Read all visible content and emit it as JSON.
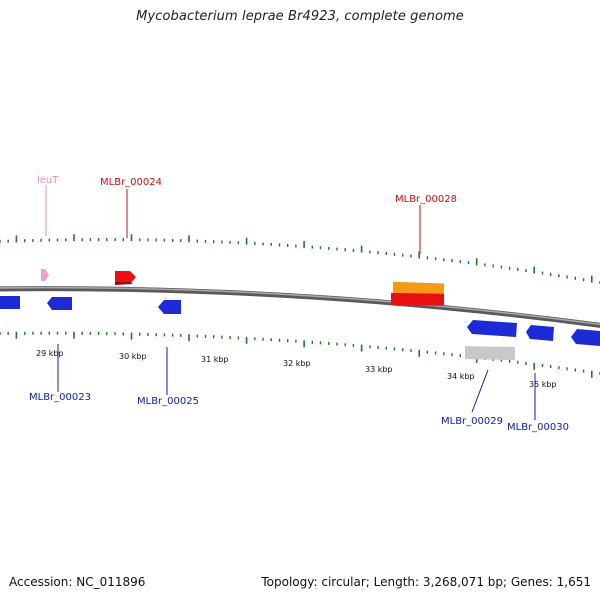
{
  "title": "Mycobacterium leprae Br4923, complete genome",
  "accession": "Accession: NC_011896",
  "summary": "Topology: circular; Length: 3,268,071 bp; Genes: 1,651",
  "colors": {
    "backbone": "#808080",
    "tick": "#1e7a1e",
    "forward_gene": "#e81010",
    "reverse_gene": "#1c2bd6",
    "trna": "#f0a0c8",
    "orange_feature": "#f59a16",
    "gray_feature": "#c8c8c8",
    "label_red": "#cc1111",
    "label_blue": "#1122aa",
    "label_pink": "#e58fbf"
  },
  "tick_labels": [
    "29 kbp",
    "30 kbp",
    "31 kbp",
    "32 kbp",
    "33 kbp",
    "34 kbp",
    "35 kbp"
  ],
  "gene_labels_top": [
    "leuT",
    "MLBr_00024",
    "MLBr_00028"
  ],
  "gene_labels_bottom": [
    "MLBr_00023",
    "MLBr_00025",
    "MLBr_00029",
    "MLBr_00030"
  ]
}
